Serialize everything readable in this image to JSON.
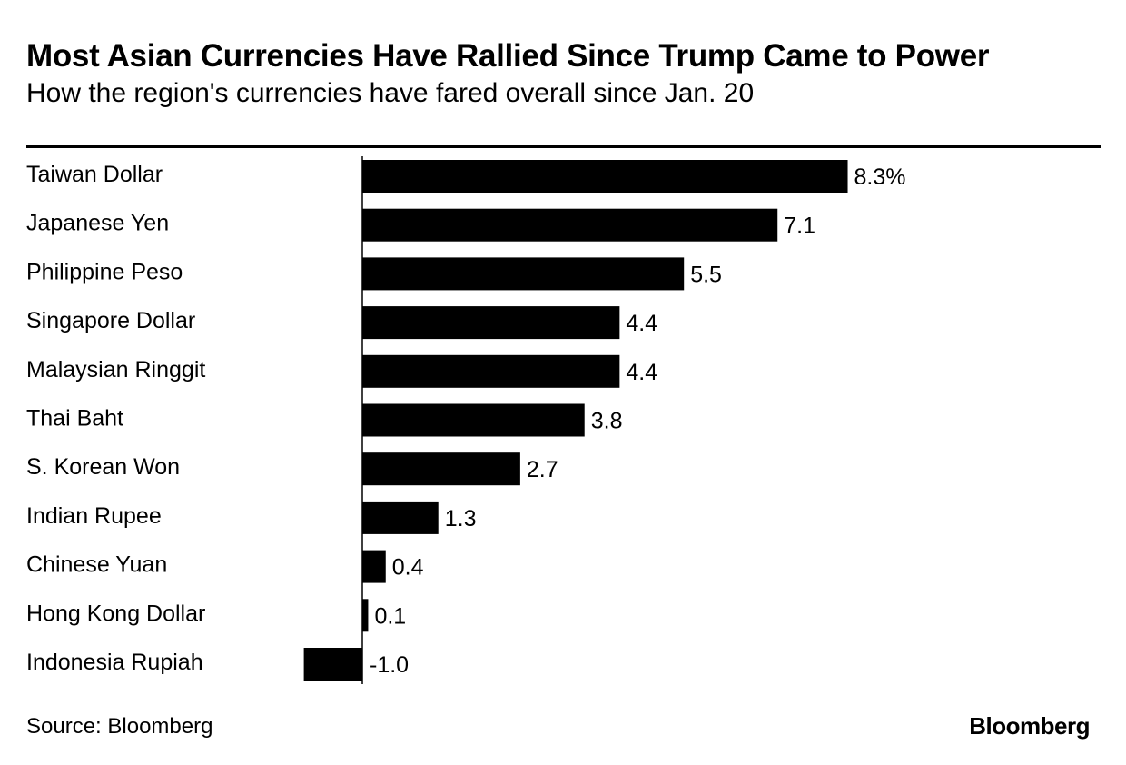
{
  "chart_data": {
    "type": "bar",
    "orientation": "horizontal",
    "title": "Most Asian Currencies Have Rallied Since Trump Came to Power",
    "subtitle": "How the region's currencies have fared overall since Jan. 20",
    "categories": [
      "Taiwan Dollar",
      "Japanese Yen",
      "Philippine Peso",
      "Singapore Dollar",
      "Malaysian Ringgit",
      "Thai Baht",
      "S. Korean Won",
      "Indian Rupee",
      "Chinese Yuan",
      "Hong Kong Dollar",
      "Indonesia Rupiah"
    ],
    "values": [
      8.3,
      7.1,
      5.5,
      4.4,
      4.4,
      3.8,
      2.7,
      1.3,
      0.4,
      0.1,
      -1.0
    ],
    "value_labels": [
      "8.3%",
      "7.1",
      "5.5",
      "4.4",
      "4.4",
      "3.8",
      "2.7",
      "1.3",
      "0.4",
      "0.1",
      "-1.0"
    ],
    "bar_color": "#000000",
    "grid": false,
    "legend": "none",
    "source": "Source: Bloomberg"
  },
  "branding": {
    "logo_text": "Bloomberg"
  }
}
